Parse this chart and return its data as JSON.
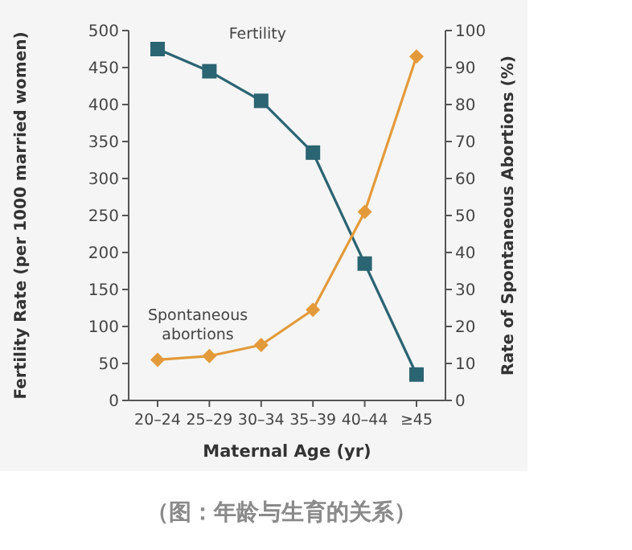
{
  "chart_data": {
    "type": "line",
    "categories": [
      "20–24",
      "25–29",
      "30–34",
      "35–39",
      "40–44",
      "≥45"
    ],
    "series": [
      {
        "name": "Fertility",
        "color": "#2b6472",
        "values": [
          475,
          445,
          405,
          335,
          185,
          35
        ],
        "marker": "square"
      },
      {
        "name": "Spontaneous abortions",
        "color": "#e39a3b",
        "values": [
          11,
          12,
          15,
          24.5,
          51,
          93
        ],
        "marker": "diamond",
        "axis": "y2"
      }
    ],
    "xlabel": "Maternal Age (yr)",
    "ylabel": "Fertility Rate (per 1000 married women)",
    "y2label": "Rate of Spontaneous Abortions (%)",
    "ylim": [
      0,
      500
    ],
    "yticks": [
      0,
      50,
      100,
      150,
      200,
      250,
      300,
      350,
      400,
      450,
      500
    ],
    "y2lim": [
      0,
      100
    ],
    "y2ticks": [
      0,
      10,
      20,
      30,
      40,
      50,
      60,
      70,
      80,
      90,
      100
    ],
    "grid": false,
    "annotations": [
      "（图：年龄与生育的关系）"
    ]
  }
}
